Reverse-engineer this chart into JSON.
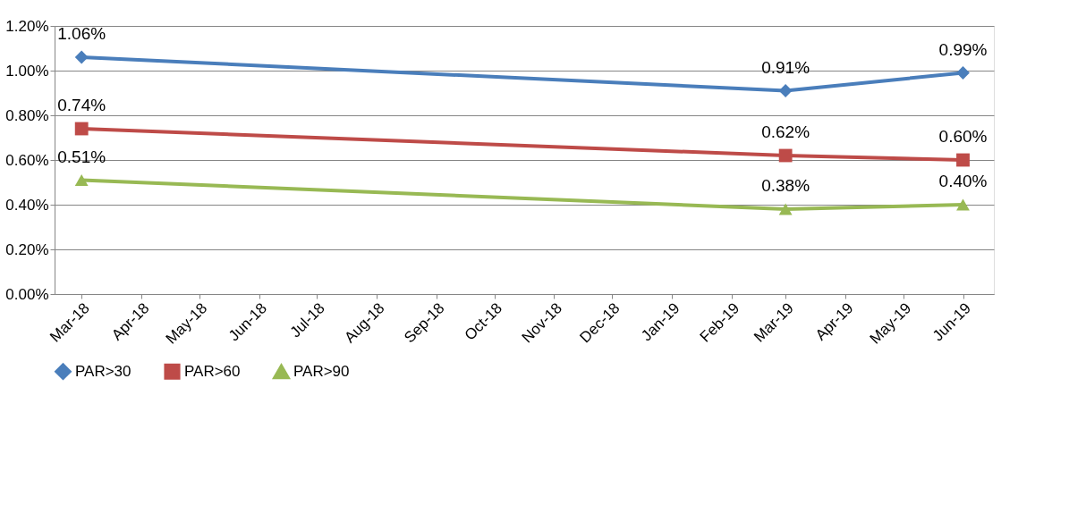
{
  "chart_data": {
    "type": "line",
    "x": [
      "2018-03-15",
      "2019-03-15",
      "2019-06-15"
    ],
    "xlim": [
      "2018-03-01",
      "2019-07-01"
    ],
    "xticks": [
      {
        "value": "2018-03-15",
        "label": "Mar-18"
      },
      {
        "value": "2018-04-15",
        "label": "Apr-18"
      },
      {
        "value": "2018-05-15",
        "label": "May-18"
      },
      {
        "value": "2018-06-15",
        "label": "Jun-18"
      },
      {
        "value": "2018-07-15",
        "label": "Jul-18"
      },
      {
        "value": "2018-08-15",
        "label": "Aug-18"
      },
      {
        "value": "2018-09-15",
        "label": "Sep-18"
      },
      {
        "value": "2018-10-15",
        "label": "Oct-18"
      },
      {
        "value": "2018-11-15",
        "label": "Nov-18"
      },
      {
        "value": "2018-12-15",
        "label": "Dec-18"
      },
      {
        "value": "2019-01-15",
        "label": "Jan-19"
      },
      {
        "value": "2019-02-15",
        "label": "Feb-19"
      },
      {
        "value": "2019-03-15",
        "label": "Mar-19"
      },
      {
        "value": "2019-04-15",
        "label": "Apr-19"
      },
      {
        "value": "2019-05-15",
        "label": "May-19"
      },
      {
        "value": "2019-06-15",
        "label": "Jun-19"
      }
    ],
    "ylim": [
      0,
      1.2
    ],
    "yticks": [
      {
        "value": 0,
        "label": "0.00%"
      },
      {
        "value": 0.2,
        "label": "0.20%"
      },
      {
        "value": 0.4,
        "label": "0.40%"
      },
      {
        "value": 0.6,
        "label": "0.60%"
      },
      {
        "value": 0.8,
        "label": "0.80%"
      },
      {
        "value": 1.0,
        "label": "1.00%"
      },
      {
        "value": 1.2,
        "label": "1.20%"
      }
    ],
    "grid": "y",
    "legend": "bottom",
    "line_style": "solid",
    "series": [
      {
        "name": "PAR>30",
        "color": "#4a7ebb",
        "marker": "diamond",
        "values": [
          1.06,
          0.91,
          0.99
        ],
        "value_labels": [
          "1.06%",
          "0.91%",
          "0.99%"
        ]
      },
      {
        "name": "PAR>60",
        "color": "#be4b48",
        "marker": "square",
        "values": [
          0.74,
          0.62,
          0.6
        ],
        "value_labels": [
          "0.74%",
          "0.62%",
          "0.60%"
        ]
      },
      {
        "name": "PAR>90",
        "color": "#98b954",
        "marker": "triangle",
        "values": [
          0.51,
          0.38,
          0.4
        ],
        "value_labels": [
          "0.51%",
          "0.38%",
          "0.40%"
        ]
      }
    ]
  }
}
